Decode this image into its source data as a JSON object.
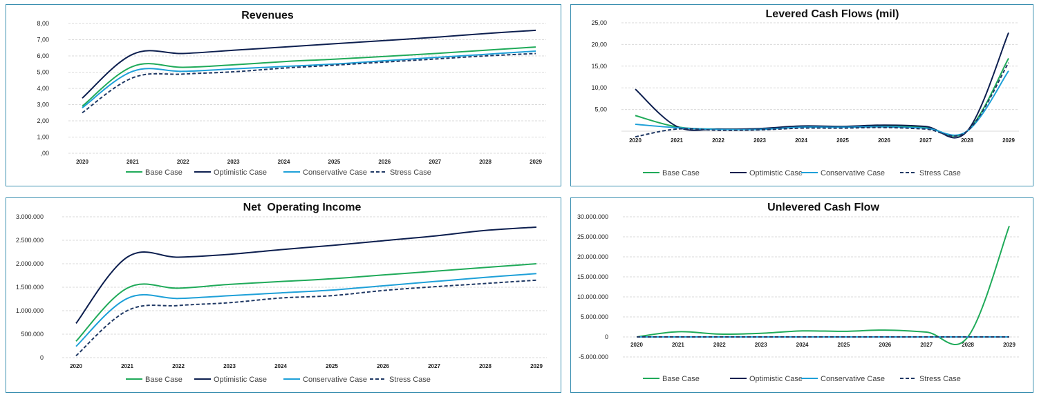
{
  "colors": {
    "base": "#1faa59",
    "optimistic": "#0d1f4f",
    "conservative": "#1ea0d8",
    "stress": "#1f3864",
    "frame": "#3a8fb0"
  },
  "legend_labels": [
    "Base Case",
    "Optimistic Case",
    "Conservative Case",
    "Stress Case"
  ],
  "chart_data": [
    {
      "type": "line",
      "title": "Revenues",
      "categories": [
        "2020",
        "2021",
        "2022",
        "2023",
        "2024",
        "2025",
        "2026",
        "2027",
        "2028",
        "2029"
      ],
      "ylim": [
        0,
        8
      ],
      "yticks": [
        0,
        1,
        2,
        3,
        4,
        5,
        6,
        7,
        8
      ],
      "ytick_labels": [
        ",00",
        "1,00",
        "2,00",
        "3,00",
        "4,00",
        "5,00",
        "6,00",
        "7,00",
        "8,00"
      ],
      "grid": true,
      "legend": "bottom",
      "series": [
        {
          "name": "Base Case",
          "style": "solid",
          "values": [
            2.9,
            5.35,
            5.3,
            5.45,
            5.65,
            5.8,
            5.97,
            6.15,
            6.35,
            6.55
          ]
        },
        {
          "name": "Optimistic Case",
          "style": "solid",
          "values": [
            3.4,
            6.1,
            6.15,
            6.35,
            6.55,
            6.75,
            6.95,
            7.15,
            7.38,
            7.58
          ]
        },
        {
          "name": "Conservative Case",
          "style": "solid",
          "values": [
            2.8,
            5.05,
            5.05,
            5.2,
            5.35,
            5.5,
            5.7,
            5.9,
            6.1,
            6.3
          ]
        },
        {
          "name": "Stress Case",
          "style": "dashed",
          "values": [
            2.5,
            4.65,
            4.88,
            5.02,
            5.25,
            5.43,
            5.62,
            5.81,
            6.0,
            6.15
          ]
        }
      ]
    },
    {
      "type": "line",
      "title": "Levered Cash Flows (mil)",
      "categories": [
        "2020",
        "2021",
        "2022",
        "2023",
        "2024",
        "2025",
        "2026",
        "2027",
        "2028",
        "2029"
      ],
      "ylim": [
        0,
        25
      ],
      "yticks": [
        5,
        10,
        15,
        20,
        25
      ],
      "ytick_labels": [
        "5,00",
        "10,00",
        "15,00",
        "20,00",
        "25,00"
      ],
      "grid": true,
      "legend": "bottom",
      "series": [
        {
          "name": "Base Case",
          "style": "solid",
          "values": [
            3.6,
            1.0,
            0.5,
            0.55,
            1.1,
            1.05,
            1.2,
            0.9,
            0.0,
            16.8
          ]
        },
        {
          "name": "Optimistic Case",
          "style": "solid",
          "values": [
            9.7,
            1.1,
            0.5,
            0.6,
            1.2,
            1.1,
            1.4,
            1.1,
            0.0,
            22.7
          ]
        },
        {
          "name": "Conservative Case",
          "style": "solid",
          "values": [
            1.6,
            0.8,
            0.4,
            0.4,
            0.9,
            0.9,
            1.0,
            0.7,
            0.0,
            13.9
          ]
        },
        {
          "name": "Stress Case",
          "style": "dashed",
          "values": [
            -1.3,
            0.5,
            0.2,
            0.3,
            0.7,
            0.7,
            0.85,
            0.5,
            0.0,
            15.8
          ]
        }
      ]
    },
    {
      "type": "line",
      "title": "Net  Operating Income",
      "categories": [
        "2020",
        "2021",
        "2022",
        "2023",
        "2024",
        "2025",
        "2026",
        "2027",
        "2028",
        "2029"
      ],
      "ylim": [
        0,
        3000000
      ],
      "yticks": [
        0,
        500000,
        1000000,
        1500000,
        2000000,
        2500000,
        3000000
      ],
      "ytick_labels": [
        "0",
        "500.000",
        "1.000.000",
        "1.500.000",
        "2.000.000",
        "2.500.000",
        "3.000.000"
      ],
      "grid": true,
      "legend": "bottom",
      "series": [
        {
          "name": "Base Case",
          "style": "solid",
          "values": [
            350000,
            1480000,
            1480000,
            1560000,
            1620000,
            1680000,
            1760000,
            1840000,
            1920000,
            2000000
          ]
        },
        {
          "name": "Optimistic Case",
          "style": "solid",
          "values": [
            730000,
            2140000,
            2140000,
            2200000,
            2300000,
            2390000,
            2490000,
            2590000,
            2710000,
            2780000
          ]
        },
        {
          "name": "Conservative Case",
          "style": "solid",
          "values": [
            240000,
            1260000,
            1260000,
            1320000,
            1380000,
            1440000,
            1530000,
            1620000,
            1710000,
            1790000
          ]
        },
        {
          "name": "Stress Case",
          "style": "dashed",
          "values": [
            40000,
            1000000,
            1110000,
            1170000,
            1270000,
            1320000,
            1430000,
            1510000,
            1580000,
            1650000
          ]
        }
      ]
    },
    {
      "type": "line",
      "title": "Unlevered Cash Flow",
      "categories": [
        "2020",
        "2021",
        "2022",
        "2023",
        "2024",
        "2025",
        "2026",
        "2027",
        "2028",
        "2029"
      ],
      "ylim": [
        -5000000,
        30000000
      ],
      "yticks": [
        -5000000,
        0,
        5000000,
        10000000,
        15000000,
        20000000,
        25000000,
        30000000
      ],
      "ytick_labels": [
        "-5.000.000",
        "0",
        "5.000.000",
        "10.000.000",
        "15.000.000",
        "20.000.000",
        "25.000.000",
        "30.000.000"
      ],
      "grid": true,
      "legend": "bottom",
      "series": [
        {
          "name": "Base Case",
          "style": "solid",
          "values": [
            0,
            1300000,
            700000,
            900000,
            1500000,
            1400000,
            1700000,
            1200000,
            0,
            27700000
          ]
        },
        {
          "name": "Optimistic Case",
          "style": "solid",
          "values": [
            0,
            0,
            0,
            0,
            0,
            0,
            0,
            0,
            0,
            0
          ]
        },
        {
          "name": "Conservative Case",
          "style": "solid",
          "values": [
            0,
            0,
            0,
            0,
            0,
            0,
            0,
            0,
            0,
            0
          ]
        },
        {
          "name": "Stress Case",
          "style": "dashed",
          "values": [
            0,
            0,
            0,
            0,
            0,
            0,
            0,
            0,
            0,
            0
          ]
        }
      ]
    }
  ]
}
